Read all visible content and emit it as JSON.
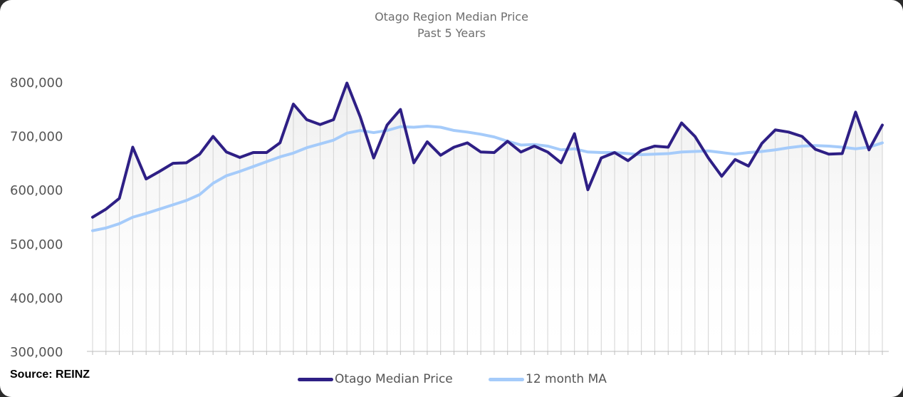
{
  "chart_data": {
    "type": "line",
    "title": "Otago Region Median Price",
    "subtitle": "Past 5 Years",
    "ylim": [
      300000,
      800000
    ],
    "yticks": [
      300000,
      400000,
      500000,
      600000,
      700000,
      800000
    ],
    "ytick_labels": [
      "300,000",
      "400,000",
      "500,000",
      "600,000",
      "700,000",
      "800,000"
    ],
    "grid": "vertical",
    "legend_position": "bottom",
    "source": "Source: REINZ",
    "series": [
      {
        "name": "Otago Median Price",
        "color": "#2e1f85",
        "values": [
          549000,
          564000,
          584000,
          679000,
          620000,
          634000,
          649000,
          650000,
          666000,
          699000,
          670000,
          660000,
          669000,
          669000,
          687000,
          759000,
          730000,
          721000,
          730000,
          798000,
          735000,
          659000,
          720000,
          749000,
          650000,
          689000,
          664000,
          679000,
          687000,
          670000,
          669000,
          690000,
          670000,
          681000,
          670000,
          650000,
          704000,
          600000,
          659000,
          669000,
          654000,
          673000,
          681000,
          679000,
          724000,
          699000,
          659000,
          625000,
          656000,
          644000,
          686000,
          711000,
          707000,
          699000,
          675000,
          666000,
          667000,
          744000,
          674000,
          720000
        ]
      },
      {
        "name": "12 month MA",
        "color": "#a5cbfa",
        "values": [
          524000,
          529000,
          537000,
          549000,
          556000,
          564000,
          572000,
          580000,
          591000,
          612000,
          626000,
          634000,
          643000,
          652000,
          661000,
          668000,
          678000,
          685000,
          692000,
          705000,
          710000,
          706000,
          710000,
          717000,
          716000,
          718000,
          716000,
          710000,
          707000,
          703000,
          698000,
          690000,
          683000,
          684000,
          681000,
          674000,
          676000,
          670000,
          669000,
          669000,
          667000,
          665000,
          666000,
          667000,
          670000,
          671000,
          672000,
          669000,
          666000,
          669000,
          671000,
          674000,
          678000,
          681000,
          682000,
          681000,
          679000,
          676000,
          679000,
          687000
        ]
      }
    ]
  }
}
